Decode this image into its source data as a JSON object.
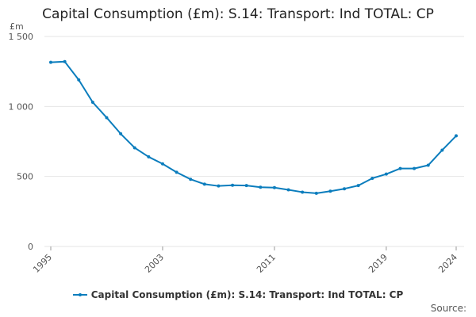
{
  "chart_data": {
    "type": "line",
    "title": "Capital Consumption (£m): S.14: Transport: Ind TOTAL: CP",
    "ylabel": "£m",
    "xlabel": "",
    "ylim": [
      0,
      1500
    ],
    "yticks": [
      0,
      500,
      1000,
      1500
    ],
    "ytick_labels": [
      "0",
      "500",
      "1 000",
      "1 500"
    ],
    "xlim": [
      1995,
      2024
    ],
    "xticks": [
      1995,
      2003,
      2011,
      2019,
      2024
    ],
    "xtick_labels": [
      "1995",
      "2003",
      "2011",
      "2019",
      "2024"
    ],
    "grid": true,
    "legend_position": "bottom",
    "series": [
      {
        "name": "Capital Consumption (£m): S.14: Transport: Ind TOTAL: CP",
        "color": "#0b7dbd",
        "x": [
          1995,
          1996,
          1997,
          1998,
          1999,
          2000,
          2001,
          2002,
          2003,
          2004,
          2005,
          2006,
          2007,
          2008,
          2009,
          2010,
          2011,
          2012,
          2013,
          2014,
          2015,
          2016,
          2017,
          2018,
          2019,
          2020,
          2021,
          2022,
          2023,
          2024
        ],
        "values": [
          1315,
          1320,
          1190,
          1030,
          920,
          805,
          705,
          640,
          590,
          530,
          480,
          445,
          432,
          437,
          435,
          423,
          420,
          405,
          388,
          380,
          395,
          412,
          435,
          487,
          517,
          557,
          557,
          580,
          688,
          790
        ]
      }
    ]
  },
  "source_label": "Source:"
}
